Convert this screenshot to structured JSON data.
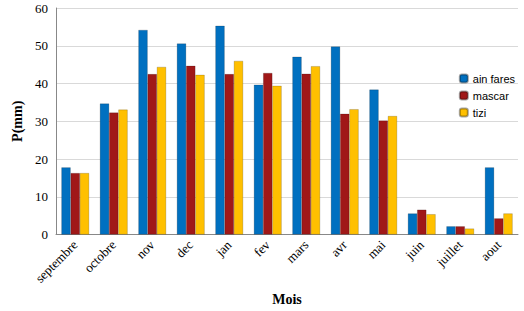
{
  "chart_data": {
    "type": "bar",
    "x_label": "Mois",
    "y_label": "P(mm)",
    "categories": [
      "septembre",
      "octobre",
      "nov",
      "dec",
      "jan",
      "fev",
      "mars",
      "avr",
      "mai",
      "juin",
      "juillet",
      "aout"
    ],
    "series": [
      {
        "name": "ain fares",
        "color": "#0070c0",
        "values": [
          17.8,
          34.7,
          54.2,
          50.6,
          55.3,
          39.7,
          47.1,
          49.8,
          38.4,
          5.6,
          2.2,
          17.8
        ]
      },
      {
        "name": "mascar",
        "color": "#a01818",
        "values": [
          16.3,
          32.3,
          42.5,
          44.7,
          42.5,
          42.8,
          42.6,
          32.0,
          30.2,
          6.6,
          2.2,
          4.3
        ]
      },
      {
        "name": "tizi",
        "color": "#ffc000",
        "values": [
          16.3,
          33.1,
          44.4,
          42.3,
          46.0,
          39.4,
          44.6,
          33.2,
          31.4,
          5.4,
          1.6,
          5.6
        ]
      }
    ],
    "ylim": [
      0,
      60
    ],
    "yticks": [
      0,
      10,
      20,
      30,
      40,
      50,
      60
    ],
    "grid": true,
    "legend": "right"
  }
}
